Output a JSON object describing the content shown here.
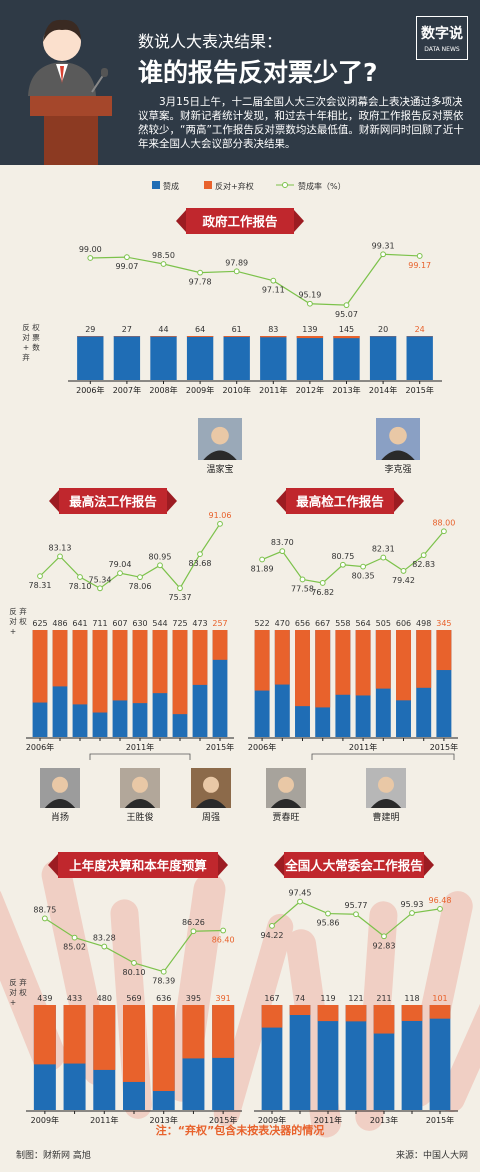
{
  "header": {
    "subtitle": "数说人大表决结果：",
    "title": "谁的报告反对票少了?",
    "intro": "3月15日上午，十二届全国人大三次会议闭幕会上表决通过多项决议草案。财新记者统计发现，和过去十年相比，政府工作报告反对票依然较少，“两高”工作报告反对票数均达最低值。财新网同时回顾了近十年来全国人大会议部分表决结果。",
    "logo": "数字说",
    "logo_sub": "DATA NEWS"
  },
  "legend": {
    "approve": "赞成",
    "against": "反对+弃权",
    "rate": "赞成率（%）"
  },
  "colors": {
    "approve": "#1f6db5",
    "against": "#e8622c",
    "line": "#7cc24b",
    "banner": "#c0272d",
    "highlight": "#e8622c"
  },
  "side_label_gov": "反对+弃权票数",
  "side_label": "反对+弃权",
  "people": {
    "gov": [
      "温家宝",
      "李克强"
    ],
    "court": [
      "肖扬",
      "王胜俊",
      "周强"
    ],
    "procuratorate": [
      "贾春旺",
      "曹建明"
    ]
  },
  "footer": {
    "note": "注：“弃权”包含未按表决器的情况",
    "credit": "制图：财新网 高旭",
    "source": "来源：中国人大网"
  },
  "chart_data": [
    {
      "type": "bar",
      "title": "政府工作报告",
      "categories": [
        "2006年",
        "2007年",
        "2008年",
        "2009年",
        "2010年",
        "2011年",
        "2012年",
        "2013年",
        "2014年",
        "2015年"
      ],
      "series": [
        {
          "name": "反对+弃权",
          "values": [
            29,
            27,
            44,
            64,
            61,
            83,
            139,
            145,
            20,
            24
          ]
        },
        {
          "name": "赞成率（%）",
          "values": [
            99.0,
            99.07,
            98.5,
            97.78,
            97.89,
            97.11,
            95.19,
            95.07,
            99.31,
            99.17
          ]
        }
      ]
    },
    {
      "type": "bar",
      "title": "最高法工作报告",
      "categories": [
        "2006年",
        "2007年",
        "2008年",
        "2009年",
        "2010年",
        "2011年",
        "2012年",
        "2013年",
        "2014年",
        "2015年"
      ],
      "tick_labels": [
        "2006年",
        "2011年",
        "2015年"
      ],
      "series": [
        {
          "name": "反对+弃权",
          "values": [
            625,
            486,
            641,
            711,
            607,
            630,
            544,
            725,
            473,
            257
          ]
        },
        {
          "name": "赞成率（%）",
          "values": [
            78.31,
            83.13,
            78.1,
            75.34,
            79.04,
            78.06,
            80.95,
            75.37,
            83.68,
            91.06
          ]
        }
      ]
    },
    {
      "type": "bar",
      "title": "最高检工作报告",
      "categories": [
        "2006年",
        "2007年",
        "2008年",
        "2009年",
        "2010年",
        "2011年",
        "2012年",
        "2013年",
        "2014年",
        "2015年"
      ],
      "tick_labels": [
        "2006年",
        "2011年",
        "2015年"
      ],
      "series": [
        {
          "name": "反对+弃权",
          "values": [
            522,
            470,
            656,
            667,
            558,
            564,
            505,
            606,
            498,
            345
          ]
        },
        {
          "name": "赞成率（%）",
          "values": [
            81.89,
            83.7,
            77.58,
            76.82,
            80.75,
            80.35,
            82.31,
            79.42,
            82.83,
            88.0
          ]
        }
      ]
    },
    {
      "type": "bar",
      "title": "上年度决算和本年度预算",
      "categories": [
        "2009年",
        "2010年",
        "2011年",
        "2012年",
        "2013年",
        "2014年",
        "2015年"
      ],
      "tick_labels": [
        "2009年",
        "2011年",
        "2013年",
        "2015年"
      ],
      "series": [
        {
          "name": "反对+弃权",
          "values": [
            439,
            433,
            480,
            569,
            636,
            395,
            391
          ]
        },
        {
          "name": "赞成率（%）",
          "values": [
            88.75,
            85.02,
            83.28,
            80.1,
            78.39,
            86.26,
            86.4
          ]
        }
      ]
    },
    {
      "type": "bar",
      "title": "全国人大常委会工作报告",
      "categories": [
        "2009年",
        "2010年",
        "2011年",
        "2012年",
        "2013年",
        "2014年",
        "2015年"
      ],
      "tick_labels": [
        "2009年",
        "2011年",
        "2013年",
        "2015年"
      ],
      "series": [
        {
          "name": "反对+弃权",
          "values": [
            167,
            74,
            119,
            121,
            211,
            118,
            101
          ]
        },
        {
          "name": "赞成率（%）",
          "values": [
            94.22,
            97.45,
            95.86,
            95.77,
            92.83,
            95.93,
            96.48
          ]
        }
      ]
    }
  ]
}
